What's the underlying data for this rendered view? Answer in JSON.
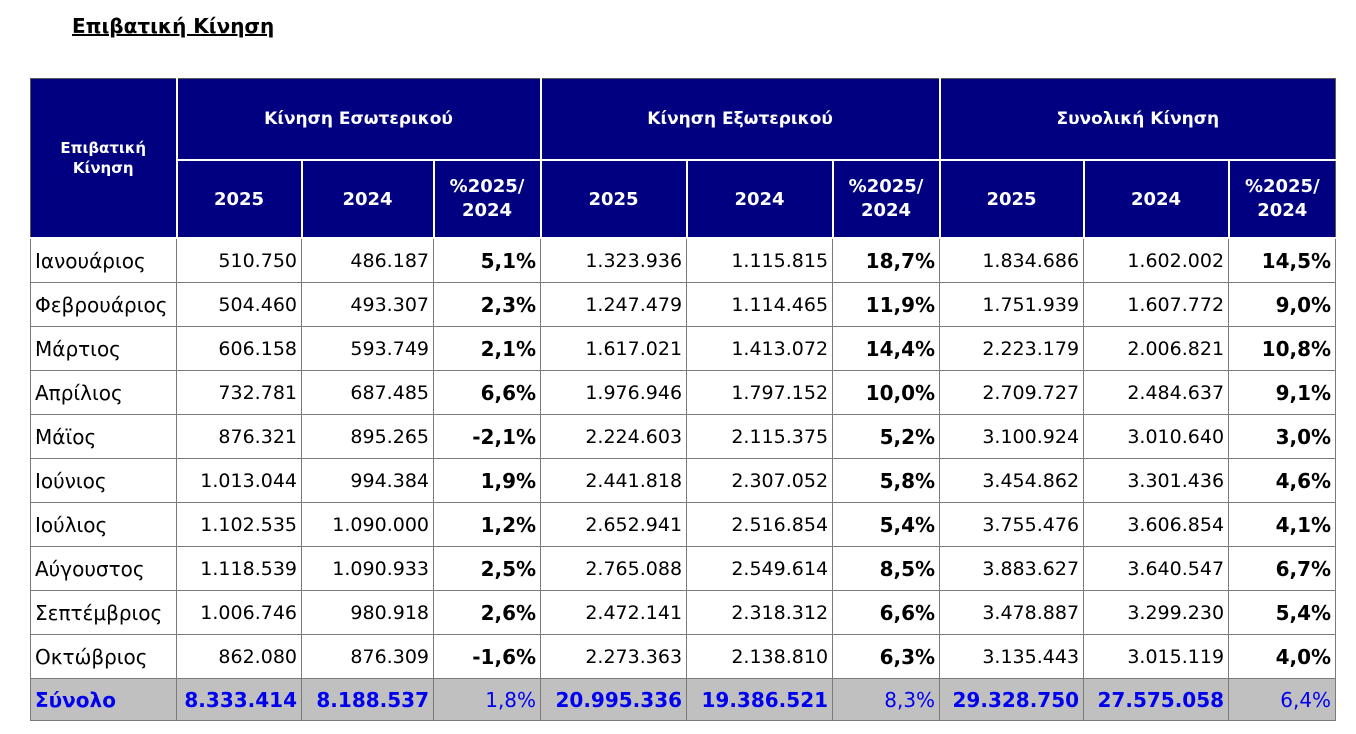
{
  "title": "Επιβατική Κίνηση",
  "header": {
    "corner": "Επιβατική Κίνηση",
    "groups": [
      "Κίνηση Εσωτερικού",
      "Κίνηση Εξωτερικού",
      "Συνολική Κίνηση"
    ],
    "year_current": "2025",
    "year_previous": "2024",
    "pct_line1": "%2025/",
    "pct_line2": "2024"
  },
  "rows": [
    {
      "month": "Ιανουάριος",
      "dom_2025": "510.750",
      "dom_2024": "486.187",
      "dom_pct": "5,1%",
      "int_2025": "1.323.936",
      "int_2024": "1.115.815",
      "int_pct": "18,7%",
      "tot_2025": "1.834.686",
      "tot_2024": "1.602.002",
      "tot_pct": "14,5%"
    },
    {
      "month": "Φεβρουάριος",
      "dom_2025": "504.460",
      "dom_2024": "493.307",
      "dom_pct": "2,3%",
      "int_2025": "1.247.479",
      "int_2024": "1.114.465",
      "int_pct": "11,9%",
      "tot_2025": "1.751.939",
      "tot_2024": "1.607.772",
      "tot_pct": "9,0%"
    },
    {
      "month": "Μάρτιος",
      "dom_2025": "606.158",
      "dom_2024": "593.749",
      "dom_pct": "2,1%",
      "int_2025": "1.617.021",
      "int_2024": "1.413.072",
      "int_pct": "14,4%",
      "tot_2025": "2.223.179",
      "tot_2024": "2.006.821",
      "tot_pct": "10,8%"
    },
    {
      "month": "Απρίλιος",
      "dom_2025": "732.781",
      "dom_2024": "687.485",
      "dom_pct": "6,6%",
      "int_2025": "1.976.946",
      "int_2024": "1.797.152",
      "int_pct": "10,0%",
      "tot_2025": "2.709.727",
      "tot_2024": "2.484.637",
      "tot_pct": "9,1%"
    },
    {
      "month": "Μάϊος",
      "dom_2025": "876.321",
      "dom_2024": "895.265",
      "dom_pct": "-2,1%",
      "int_2025": "2.224.603",
      "int_2024": "2.115.375",
      "int_pct": "5,2%",
      "tot_2025": "3.100.924",
      "tot_2024": "3.010.640",
      "tot_pct": "3,0%"
    },
    {
      "month": "Ιούνιος",
      "dom_2025": "1.013.044",
      "dom_2024": "994.384",
      "dom_pct": "1,9%",
      "int_2025": "2.441.818",
      "int_2024": "2.307.052",
      "int_pct": "5,8%",
      "tot_2025": "3.454.862",
      "tot_2024": "3.301.436",
      "tot_pct": "4,6%"
    },
    {
      "month": "Ιούλιος",
      "dom_2025": "1.102.535",
      "dom_2024": "1.090.000",
      "dom_pct": "1,2%",
      "int_2025": "2.652.941",
      "int_2024": "2.516.854",
      "int_pct": "5,4%",
      "tot_2025": "3.755.476",
      "tot_2024": "3.606.854",
      "tot_pct": "4,1%"
    },
    {
      "month": "Αύγουστος",
      "dom_2025": "1.118.539",
      "dom_2024": "1.090.933",
      "dom_pct": "2,5%",
      "int_2025": "2.765.088",
      "int_2024": "2.549.614",
      "int_pct": "8,5%",
      "tot_2025": "3.883.627",
      "tot_2024": "3.640.547",
      "tot_pct": "6,7%"
    },
    {
      "month": "Σεπτέμβριος",
      "dom_2025": "1.006.746",
      "dom_2024": "980.918",
      "dom_pct": "2,6%",
      "int_2025": "2.472.141",
      "int_2024": "2.318.312",
      "int_pct": "6,6%",
      "tot_2025": "3.478.887",
      "tot_2024": "3.299.230",
      "tot_pct": "5,4%"
    },
    {
      "month": "Οκτώβριος",
      "dom_2025": "862.080",
      "dom_2024": "876.309",
      "dom_pct": "-1,6%",
      "int_2025": "2.273.363",
      "int_2024": "2.138.810",
      "int_pct": "6,3%",
      "tot_2025": "3.135.443",
      "tot_2024": "3.015.119",
      "tot_pct": "4,0%"
    }
  ],
  "total": {
    "month": "Σύνολο",
    "dom_2025": "8.333.414",
    "dom_2024": "8.188.537",
    "dom_pct": "1,8%",
    "int_2025": "20.995.336",
    "int_2024": "19.386.521",
    "int_pct": "8,3%",
    "tot_2025": "29.328.750",
    "tot_2024": "27.575.058",
    "tot_pct": "6,4%"
  },
  "colors": {
    "header_bg": "#000080",
    "header_text": "#ffffff",
    "total_bg": "#c0c0c0",
    "total_text": "#0000ee"
  }
}
